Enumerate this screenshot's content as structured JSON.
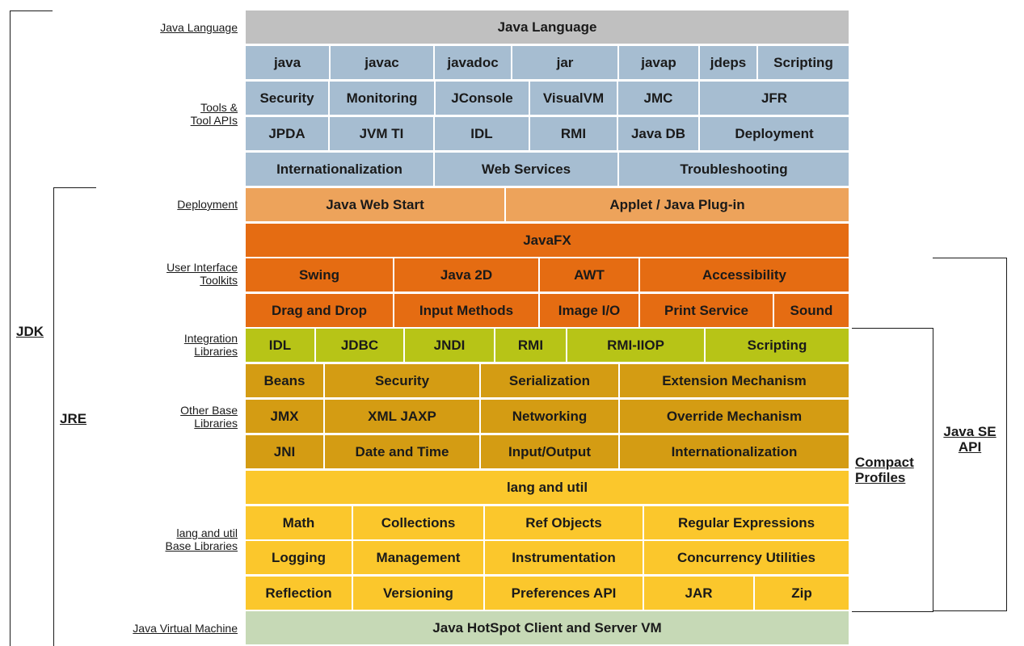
{
  "labels": {
    "java_language": "Java Language",
    "tools_1": "Tools &",
    "tools_2": "Tool APIs",
    "deployment": "Deployment",
    "ui_1": "User Interface",
    "ui_2": "Toolkits",
    "integration_1": "Integration",
    "integration_2": "Libraries",
    "other_1": "Other Base",
    "other_2": "Libraries",
    "lang_1": "lang and util",
    "lang_2": "Base Libraries",
    "jvm": "Java Virtual Machine"
  },
  "brackets": {
    "jdk": "JDK",
    "jre": "JRE",
    "compact_1": "Compact",
    "compact_2": "Profiles",
    "javase_1": "Java SE",
    "javase_2": "API"
  },
  "colors": {
    "java_language": "#c0c0c0",
    "tools": "#a6bdd1",
    "deployment": "#eda35b",
    "ui": "#e56c12",
    "integration": "#b7c417",
    "other_base": "#d49c13",
    "lang_util": "#fbc72c",
    "jvm": "#c6d9b6"
  },
  "rows": [
    {
      "category": "java_language",
      "cells": [
        "Java Language"
      ]
    },
    {
      "category": "tools",
      "cells": [
        "java",
        "javac",
        "javadoc",
        "jar",
        "javap",
        "jdeps",
        "Scripting"
      ]
    },
    {
      "category": "tools",
      "cells": [
        "Security",
        "Monitoring",
        "JConsole",
        "VisualVM",
        "JMC",
        "JFR"
      ]
    },
    {
      "category": "tools",
      "cells": [
        "JPDA",
        "JVM TI",
        "IDL",
        "RMI",
        "Java DB",
        "Deployment"
      ]
    },
    {
      "category": "tools",
      "cells": [
        "Internationalization",
        "Web Services",
        "Troubleshooting"
      ]
    },
    {
      "category": "deployment",
      "cells": [
        "Java Web Start",
        "Applet / Java Plug-in"
      ]
    },
    {
      "category": "ui",
      "cells": [
        "JavaFX"
      ]
    },
    {
      "category": "ui",
      "cells": [
        "Swing",
        "Java 2D",
        "AWT",
        "Accessibility"
      ]
    },
    {
      "category": "ui",
      "cells": [
        "Drag and Drop",
        "Input Methods",
        "Image I/O",
        "Print Service",
        "Sound"
      ]
    },
    {
      "category": "integration",
      "cells": [
        "IDL",
        "JDBC",
        "JNDI",
        "RMI",
        "RMI-IIOP",
        "Scripting"
      ]
    },
    {
      "category": "other_base",
      "cells": [
        "Beans",
        "Security",
        "Serialization",
        "Extension Mechanism"
      ]
    },
    {
      "category": "other_base",
      "cells": [
        "JMX",
        "XML JAXP",
        "Networking",
        "Override Mechanism"
      ]
    },
    {
      "category": "other_base",
      "cells": [
        "JNI",
        "Date and Time",
        "Input/Output",
        "Internationalization"
      ]
    },
    {
      "category": "lang_util",
      "cells": [
        "lang and util"
      ]
    },
    {
      "category": "lang_util",
      "cells": [
        "Math",
        "Collections",
        "Ref Objects",
        "Regular Expressions"
      ]
    },
    {
      "category": "lang_util",
      "cells": [
        "Logging",
        "Management",
        "Instrumentation",
        "Concurrency Utilities"
      ]
    },
    {
      "category": "lang_util",
      "cells": [
        "Reflection",
        "Versioning",
        "Preferences API",
        "JAR",
        "Zip"
      ]
    },
    {
      "category": "jvm",
      "cells": [
        "Java HotSpot Client and Server VM"
      ]
    }
  ]
}
